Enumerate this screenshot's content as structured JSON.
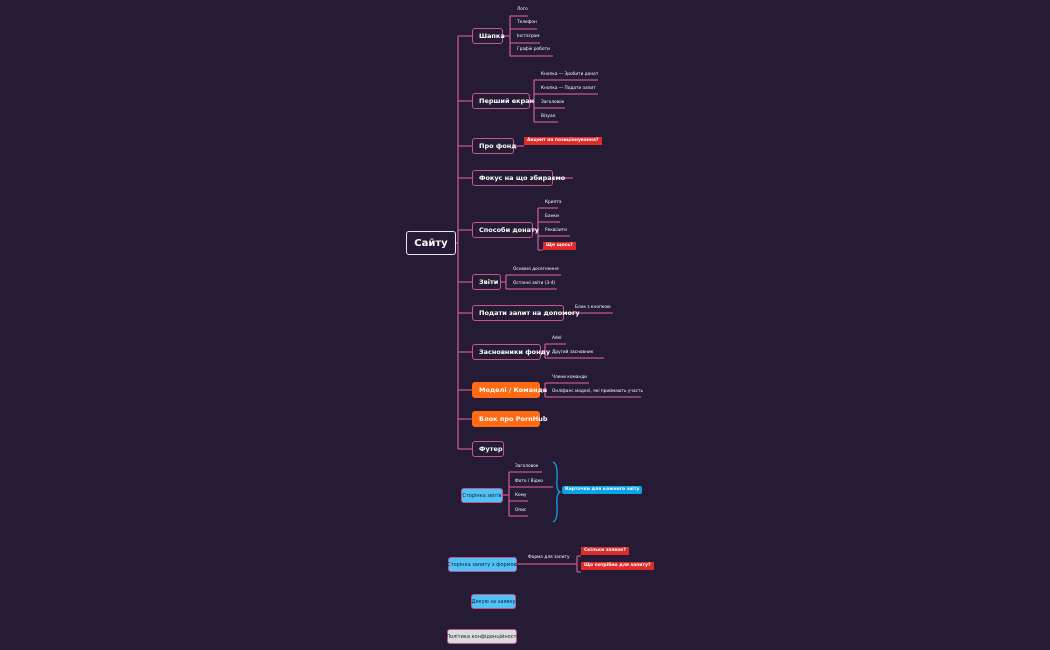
{
  "root": "Сайту",
  "branches": [
    {
      "label": "Шапка",
      "children": [
        "Лого",
        "Телефон",
        "Інстаграм",
        "Графік роботи"
      ]
    },
    {
      "label": "Перший екран",
      "children": [
        "Кнопка — Зробити донат",
        "Кнопка — Подати запит",
        "Заголовок",
        "Візуал"
      ]
    },
    {
      "label": "Про фонд",
      "tag": "Акцент на позиціонування?"
    },
    {
      "label": "Фокус на що збираємо"
    },
    {
      "label": "Способи донату",
      "children": [
        "Крипта",
        "Банки",
        "Реквізити"
      ],
      "tag": "Ще щось?"
    },
    {
      "label": "Звіти",
      "children": [
        "Основні досягнення",
        "Останні звіти (3-4)"
      ]
    },
    {
      "label": "Подати запит на допомогу",
      "children": [
        "Блок з кнопкою"
      ]
    },
    {
      "label": "Засновники фонду",
      "children": [
        "Adel",
        "Другий засновник"
      ]
    },
    {
      "label": "Моделі / Команда",
      "children": [
        "Члени команди",
        "Онліфанс моделі, які приймають участь"
      ]
    },
    {
      "label": "Блок про PornHub"
    },
    {
      "label": "Футер"
    }
  ],
  "reports_page": {
    "label": "Сторінка звітів",
    "children": [
      "Заголовок",
      "Фото / Відео",
      "Кому",
      "Опис"
    ],
    "summary": "Карточки для кожного звіту"
  },
  "request_page": {
    "label": "Сторінка запиту з формою",
    "child": "Форма для запиту",
    "tags": [
      "Скільки заявок?",
      "Що потрібно для запиту?"
    ]
  },
  "thanks_page": {
    "label": "Дякую за заявку"
  },
  "privacy_page": {
    "label": "Політика конфіденційності"
  },
  "colors": {
    "background": "#261b35",
    "connector": "#c2588f",
    "orange": "#ff6a13",
    "red": "#e02b2b",
    "blue": "#4fc3f7"
  }
}
